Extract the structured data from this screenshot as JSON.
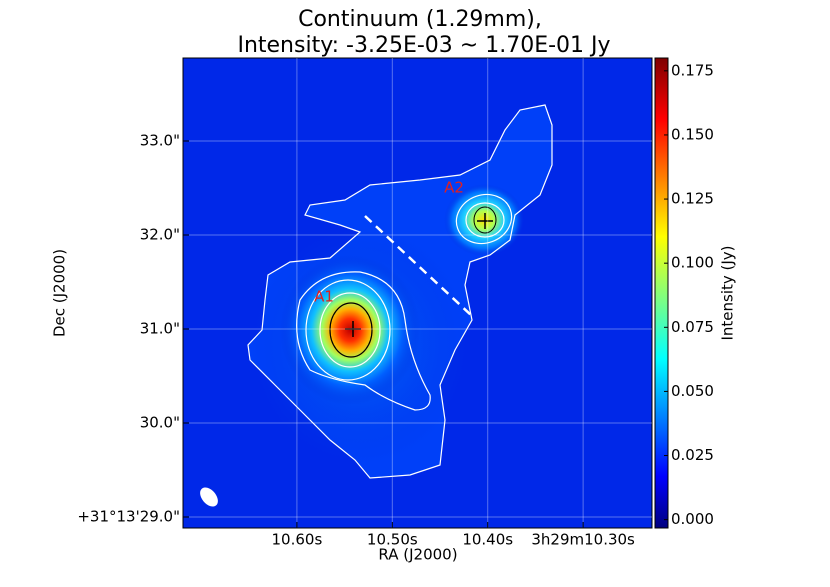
{
  "chart_data": {
    "type": "image",
    "title": [
      "Continuum (1.29mm),",
      "Intensity: -3.25E-03 ~ 1.70E-01 Jy"
    ],
    "x_label": "RA (J2000)",
    "y_label": "Dec (J2000)",
    "colorbar_label": "Intensity (Jy)",
    "xlim": [
      10.7194,
      10.2278
    ],
    "ylim": [
      28.883,
      33.883
    ],
    "xticks": [
      {
        "value": 10.6,
        "label": "10.60s"
      },
      {
        "value": 10.5,
        "label": "10.50s"
      },
      {
        "value": 10.4,
        "label": "10.40s"
      },
      {
        "value": 10.3,
        "label": "3h29m10.30s"
      }
    ],
    "yticks": [
      {
        "value": 29,
        "label": "+31°13'29.0\""
      },
      {
        "value": 30,
        "label": "30.0\""
      },
      {
        "value": 31,
        "label": "31.0\""
      },
      {
        "value": 32,
        "label": "32.0\""
      },
      {
        "value": 33,
        "label": "33.0\""
      }
    ],
    "clim": [
      -0.00325,
      0.18
    ],
    "cticks": [
      {
        "value": 0,
        "label": "0.000"
      },
      {
        "value": 0.025,
        "label": "0.025"
      },
      {
        "value": 0.05,
        "label": "0.050"
      },
      {
        "value": 0.075,
        "label": "0.075"
      },
      {
        "value": 0.1,
        "label": "0.100"
      },
      {
        "value": 0.125,
        "label": "0.125"
      },
      {
        "value": 0.15,
        "label": "0.150"
      },
      {
        "value": 0.175,
        "label": "0.175"
      }
    ],
    "sources": [
      "A1",
      "A2"
    ],
    "grid": true
  }
}
